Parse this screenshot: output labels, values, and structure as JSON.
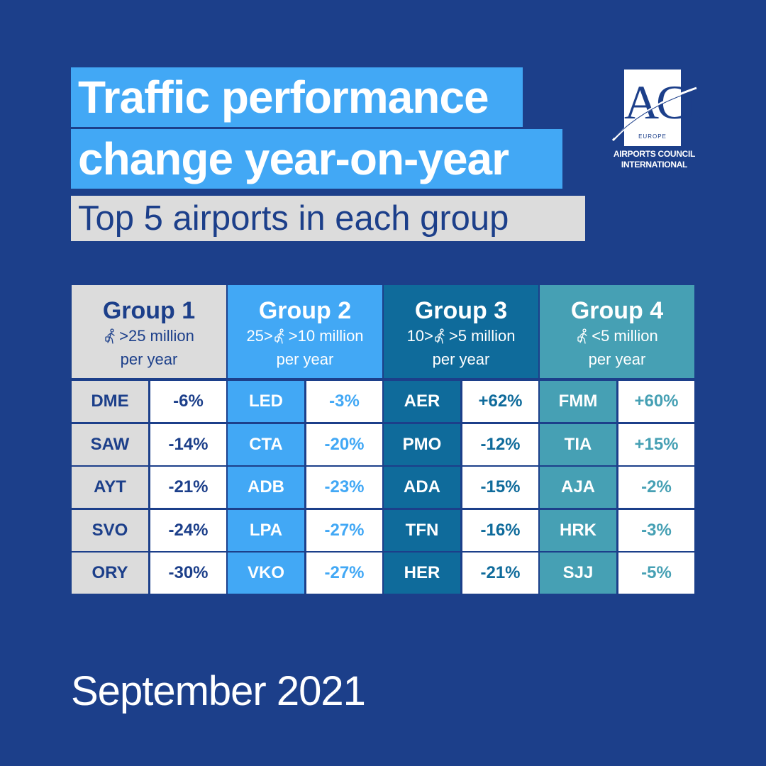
{
  "title": {
    "line1": "Traffic performance",
    "line2": "change year-on-year",
    "subtitle": "Top 5 airports in each group"
  },
  "logo": {
    "mark": "ACI",
    "region": "EUROPE",
    "name_line1": "AIRPORTS COUNCIL",
    "name_line2": "INTERNATIONAL"
  },
  "icon": "traveler-with-suitcase-icon",
  "colors": {
    "background": "#1c3f8a",
    "group1": "#dcdcdc",
    "group2": "#42a8f5",
    "group3": "#0f6b9b",
    "group4": "#46a0b4",
    "value_cell": "#ffffff"
  },
  "groups": [
    {
      "name": "Group 1",
      "size_prefix": "",
      "size_suffix": ">25 million",
      "per": "per year",
      "rows": [
        {
          "code": "DME",
          "value": "-6%"
        },
        {
          "code": "SAW",
          "value": "-14%"
        },
        {
          "code": "AYT",
          "value": "-21%"
        },
        {
          "code": "SVO",
          "value": "-24%"
        },
        {
          "code": "ORY",
          "value": "-30%"
        }
      ]
    },
    {
      "name": "Group 2",
      "size_prefix": "25>",
      "size_suffix": ">10 million",
      "per": "per year",
      "rows": [
        {
          "code": "LED",
          "value": "-3%"
        },
        {
          "code": "CTA",
          "value": "-20%"
        },
        {
          "code": "ADB",
          "value": "-23%"
        },
        {
          "code": "LPA",
          "value": "-27%"
        },
        {
          "code": "VKO",
          "value": "-27%"
        }
      ]
    },
    {
      "name": "Group 3",
      "size_prefix": "10>",
      "size_suffix": ">5 million",
      "per": "per year",
      "rows": [
        {
          "code": "AER",
          "value": "+62%"
        },
        {
          "code": "PMO",
          "value": "-12%"
        },
        {
          "code": "ADA",
          "value": "-15%"
        },
        {
          "code": "TFN",
          "value": "-16%"
        },
        {
          "code": "HER",
          "value": "-21%"
        }
      ]
    },
    {
      "name": "Group 4",
      "size_prefix": "",
      "size_suffix": "<5 million",
      "per": "per year",
      "rows": [
        {
          "code": "FMM",
          "value": "+60%"
        },
        {
          "code": "TIA",
          "value": "+15%"
        },
        {
          "code": "AJA",
          "value": "-2%"
        },
        {
          "code": "HRK",
          "value": "-3%"
        },
        {
          "code": "SJJ",
          "value": "-5%"
        }
      ]
    }
  ],
  "date": "September 2021"
}
